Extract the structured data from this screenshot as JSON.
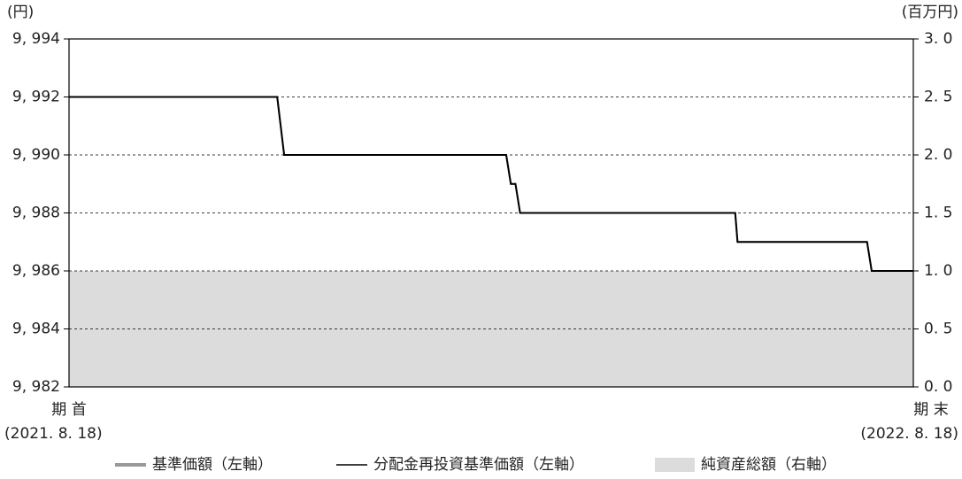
{
  "chart_data": {
    "type": "line",
    "y_unit": "(円)",
    "y2_unit": "(百万円)",
    "xlim": [
      0,
      365
    ],
    "xticks": [
      {
        "value": 0,
        "label": "期 首"
      },
      {
        "value": 365,
        "label": "期 末"
      }
    ],
    "x_tick_dates": [
      "(2021. 8. 18)",
      "(2022. 8. 18)"
    ],
    "ylim": [
      9982,
      9994
    ],
    "yticks": [
      {
        "value": 9982,
        "label": "9, 982"
      },
      {
        "value": 9984,
        "label": "9, 984"
      },
      {
        "value": 9986,
        "label": "9, 986"
      },
      {
        "value": 9988,
        "label": "9, 988"
      },
      {
        "value": 9990,
        "label": "9, 990"
      },
      {
        "value": 9992,
        "label": "9, 992"
      },
      {
        "value": 9994,
        "label": "9, 994"
      }
    ],
    "y2lim": [
      0,
      3
    ],
    "y2ticks": [
      {
        "value": 0,
        "label": "0. 0"
      },
      {
        "value": 0.5,
        "label": "0. 5"
      },
      {
        "value": 1,
        "label": "1. 0"
      },
      {
        "value": 1.5,
        "label": "1. 5"
      },
      {
        "value": 2,
        "label": "2. 0"
      },
      {
        "value": 2.5,
        "label": "2. 5"
      },
      {
        "value": 3,
        "label": "3. 0"
      }
    ],
    "grid": true,
    "series": [
      {
        "name": "基準価額（左軸）",
        "color": "#999999",
        "kind": "line",
        "x": [
          0,
          90,
          93,
          189,
          191,
          193,
          195,
          288,
          289,
          345,
          347,
          365
        ],
        "values": [
          9992,
          9992,
          9990,
          9990,
          9989,
          9989,
          9988,
          9988,
          9987,
          9987,
          9986,
          9986
        ]
      },
      {
        "name": "分配金再投資基準価額（左軸）",
        "color": "#000000",
        "kind": "line",
        "x": [
          0,
          90,
          93,
          189,
          191,
          193,
          195,
          288,
          289,
          345,
          347,
          365
        ],
        "values": [
          9992,
          9992,
          9990,
          9990,
          9989,
          9989,
          9988,
          9988,
          9987,
          9987,
          9986,
          9986
        ]
      },
      {
        "name": "純資産総額（右軸）",
        "color": "#dcdcdc",
        "kind": "area",
        "axis": "y2",
        "x": [
          0,
          365
        ],
        "values": [
          1,
          1
        ]
      }
    ]
  }
}
